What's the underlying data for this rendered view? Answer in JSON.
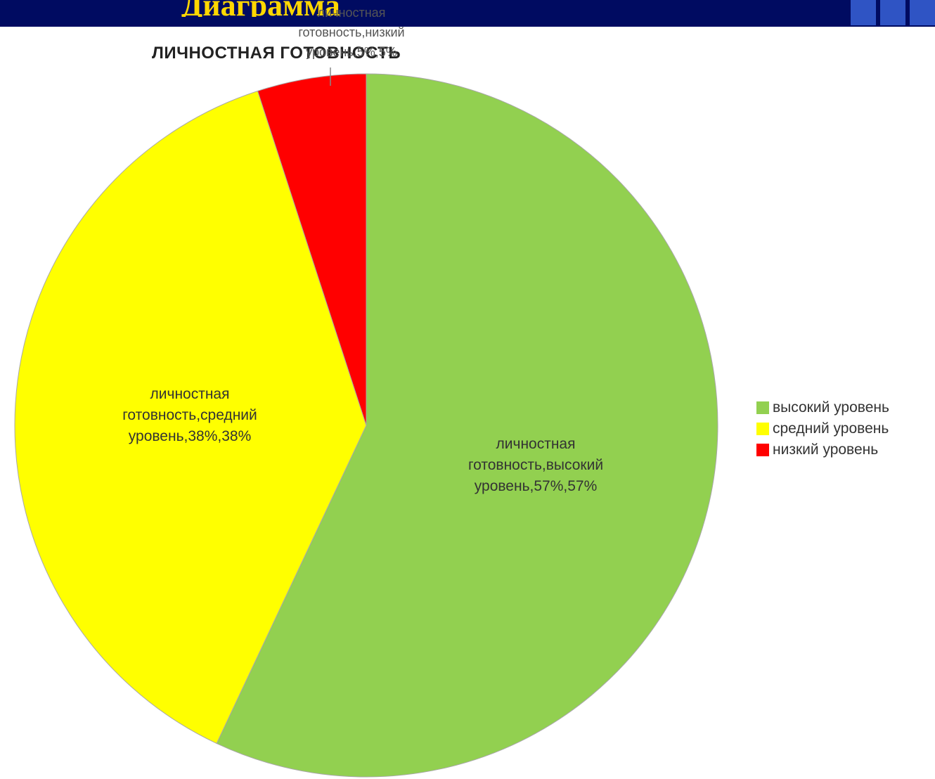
{
  "slide": {
    "heading": "Диаграмма"
  },
  "chart_data": {
    "type": "pie",
    "title": "ЛИЧНОСТНАЯ ГОТОВНОСТЬ",
    "categories": [
      "высокий уровень",
      "средний уровень",
      "низкий уровень"
    ],
    "values": [
      57,
      38,
      5
    ],
    "colors": [
      "#92d050",
      "#ffff00",
      "#ff0000"
    ],
    "data_labels": [
      "личностная готовность,высокий уровень,57%,57%",
      "личностная готовность,средний уровень,38%,38%",
      "личностная готовность,низкий уровень,5%,5%"
    ],
    "label_lines": {
      "high": [
        "личностная",
        "готовность,высокий",
        "уровень,57%,57%"
      ],
      "mid": [
        "личностная",
        "готовность,средний",
        "уровень,38%,38%"
      ],
      "low": [
        "личностная",
        "готовность,низкий",
        "уровень,5%,5%"
      ]
    },
    "legend": {
      "position": "right",
      "entries": [
        "высокий уровень",
        "средний уровень",
        "низкий уровень"
      ]
    }
  }
}
